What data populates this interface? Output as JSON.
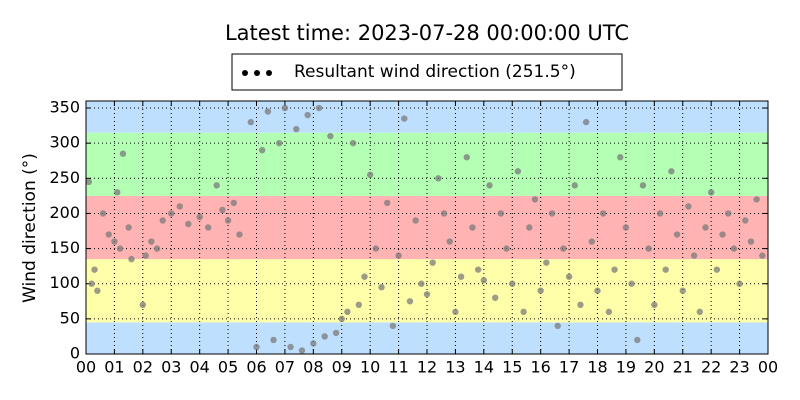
{
  "chart_data": {
    "type": "scatter",
    "title": "Latest time: 2023-07-28 00:00:00 UTC",
    "y_label": "Wind direction (°)",
    "xlim": [
      0,
      24
    ],
    "ylim": [
      0,
      360
    ],
    "xticks": [
      {
        "value": 0,
        "label": "00"
      },
      {
        "value": 1,
        "label": "01"
      },
      {
        "value": 2,
        "label": "02"
      },
      {
        "value": 3,
        "label": "03"
      },
      {
        "value": 4,
        "label": "04"
      },
      {
        "value": 5,
        "label": "05"
      },
      {
        "value": 6,
        "label": "06"
      },
      {
        "value": 7,
        "label": "07"
      },
      {
        "value": 8,
        "label": "08"
      },
      {
        "value": 9,
        "label": "09"
      },
      {
        "value": 10,
        "label": "10"
      },
      {
        "value": 11,
        "label": "11"
      },
      {
        "value": 12,
        "label": "12"
      },
      {
        "value": 13,
        "label": "13"
      },
      {
        "value": 14,
        "label": "14"
      },
      {
        "value": 15,
        "label": "15"
      },
      {
        "value": 16,
        "label": "16"
      },
      {
        "value": 17,
        "label": "17"
      },
      {
        "value": 18,
        "label": "18"
      },
      {
        "value": 19,
        "label": "19"
      },
      {
        "value": 20,
        "label": "20"
      },
      {
        "value": 21,
        "label": "21"
      },
      {
        "value": 22,
        "label": "22"
      },
      {
        "value": 23,
        "label": "23"
      },
      {
        "value": 24,
        "label": "00"
      }
    ],
    "yticks": [
      0,
      50,
      100,
      150,
      200,
      250,
      300,
      350
    ],
    "grid": true,
    "bands": [
      {
        "from": 0,
        "to": 45,
        "color": "#bfdfff"
      },
      {
        "from": 45,
        "to": 135,
        "color": "#ffffaa"
      },
      {
        "from": 135,
        "to": 225,
        "color": "#ffb3b3"
      },
      {
        "from": 225,
        "to": 315,
        "color": "#b3ffb3"
      },
      {
        "from": 315,
        "to": 360,
        "color": "#bfdfff"
      }
    ],
    "legend": "top",
    "series": [
      {
        "name": "Resultant wind direction (251.5°)",
        "color": "#7a7a7a",
        "x": [
          0.1,
          0.2,
          0.3,
          0.4,
          0.6,
          0.8,
          1.0,
          1.2,
          1.1,
          1.3,
          1.5,
          1.6,
          2.0,
          2.1,
          2.3,
          2.5,
          2.7,
          3.0,
          3.3,
          3.6,
          4.0,
          4.3,
          4.6,
          4.8,
          5.0,
          5.2,
          5.4,
          5.8,
          6.0,
          6.2,
          6.4,
          6.6,
          6.8,
          7.0,
          7.2,
          7.4,
          7.6,
          7.8,
          8.0,
          8.2,
          8.4,
          8.6,
          8.8,
          9.0,
          9.2,
          9.4,
          9.6,
          9.8,
          10.0,
          10.2,
          10.4,
          10.6,
          10.8,
          11.0,
          11.2,
          11.4,
          11.6,
          11.8,
          12.0,
          12.2,
          12.4,
          12.6,
          12.8,
          13.0,
          13.2,
          13.4,
          13.6,
          13.8,
          14.0,
          14.2,
          14.4,
          14.6,
          14.8,
          15.0,
          15.2,
          15.4,
          15.6,
          15.8,
          16.0,
          16.2,
          16.4,
          16.6,
          16.8,
          17.0,
          17.2,
          17.4,
          17.6,
          17.8,
          18.0,
          18.2,
          18.4,
          18.6,
          18.8,
          19.0,
          19.2,
          19.4,
          19.6,
          19.8,
          20.0,
          20.2,
          20.4,
          20.6,
          20.8,
          21.0,
          21.2,
          21.4,
          21.6,
          21.8,
          22.0,
          22.2,
          22.4,
          22.6,
          22.8,
          23.0,
          23.2,
          23.4,
          23.6,
          23.8
        ],
        "values": [
          245,
          100,
          120,
          90,
          200,
          170,
          160,
          150,
          230,
          285,
          180,
          135,
          70,
          140,
          160,
          150,
          190,
          200,
          210,
          185,
          195,
          180,
          240,
          205,
          190,
          215,
          170,
          330,
          10,
          290,
          345,
          20,
          300,
          350,
          10,
          320,
          5,
          340,
          15,
          350,
          25,
          310,
          30,
          50,
          60,
          300,
          70,
          110,
          255,
          150,
          95,
          215,
          40,
          140,
          335,
          75,
          190,
          100,
          85,
          130,
          250,
          200,
          160,
          60,
          110,
          280,
          180,
          120,
          105,
          240,
          80,
          200,
          150,
          100,
          260,
          60,
          180,
          220,
          90,
          130,
          200,
          40,
          150,
          110,
          240,
          70,
          330,
          160,
          90,
          200,
          60,
          120,
          280,
          180,
          100,
          20,
          240,
          150,
          70,
          200,
          120,
          260,
          170,
          90,
          210,
          140,
          60,
          180,
          230,
          120,
          170,
          200,
          150,
          100,
          190,
          160,
          220,
          140
        ]
      }
    ]
  }
}
